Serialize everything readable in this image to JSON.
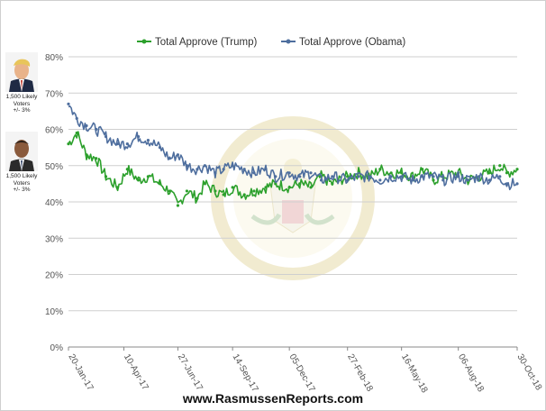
{
  "chart_data": {
    "type": "line",
    "title": "",
    "xlabel": "",
    "ylabel": "",
    "ylim": [
      0,
      80
    ],
    "y_ticks": [
      "0%",
      "10%",
      "20%",
      "30%",
      "40%",
      "50%",
      "60%",
      "70%",
      "80%"
    ],
    "x_ticks": [
      "20-Jan-17",
      "10-Apr-17",
      "27-Jun-17",
      "14-Sep-17",
      "05-Dec-17",
      "27-Feb-18",
      "16-May-18",
      "06-Aug-18",
      "30-Oct-18"
    ],
    "grid": "horizontal",
    "legend_position": "top",
    "series": [
      {
        "name": "Total Approve (Trump)",
        "color": "#2ca02c",
        "x": [
          "20-Jan-17",
          "01-Feb-17",
          "15-Feb-17",
          "01-Mar-17",
          "15-Mar-17",
          "01-Apr-17",
          "15-Apr-17",
          "01-May-17",
          "15-May-17",
          "01-Jun-17",
          "15-Jun-17",
          "27-Jun-17",
          "10-Jul-17",
          "25-Jul-17",
          "05-Aug-17",
          "20-Aug-17",
          "01-Sep-17",
          "14-Sep-17",
          "01-Oct-17",
          "15-Oct-17",
          "01-Nov-17",
          "15-Nov-17",
          "05-Dec-17",
          "20-Dec-17",
          "05-Jan-18",
          "20-Jan-18",
          "05-Feb-18",
          "27-Feb-18",
          "15-Mar-18",
          "01-Apr-18",
          "15-Apr-18",
          "01-May-18",
          "16-May-18",
          "01-Jun-18",
          "15-Jun-18",
          "01-Jul-18",
          "15-Jul-18",
          "06-Aug-18",
          "20-Aug-18",
          "05-Sep-18",
          "20-Sep-18",
          "05-Oct-18",
          "15-Oct-18",
          "30-Oct-18"
        ],
        "values": [
          56,
          59,
          53,
          52,
          47,
          44,
          49,
          46,
          47,
          45,
          43,
          39,
          43,
          41,
          45,
          43,
          42,
          44,
          42,
          43,
          44,
          45,
          44,
          45,
          44,
          47,
          45,
          47,
          48,
          47,
          49,
          48,
          48,
          47,
          49,
          46,
          47,
          48,
          46,
          47,
          48,
          50,
          48,
          49
        ]
      },
      {
        "name": "Total Approve (Obama)",
        "color": "#4e6e9e",
        "x": [
          "20-Jan-17",
          "01-Feb-17",
          "15-Feb-17",
          "01-Mar-17",
          "15-Mar-17",
          "01-Apr-17",
          "15-Apr-17",
          "01-May-17",
          "15-May-17",
          "01-Jun-17",
          "15-Jun-17",
          "27-Jun-17",
          "10-Jul-17",
          "25-Jul-17",
          "05-Aug-17",
          "20-Aug-17",
          "01-Sep-17",
          "14-Sep-17",
          "01-Oct-17",
          "15-Oct-17",
          "01-Nov-17",
          "15-Nov-17",
          "05-Dec-17",
          "20-Dec-17",
          "05-Jan-18",
          "20-Jan-18",
          "05-Feb-18",
          "27-Feb-18",
          "15-Mar-18",
          "01-Apr-18",
          "15-Apr-18",
          "01-May-18",
          "16-May-18",
          "01-Jun-18",
          "15-Jun-18",
          "01-Jul-18",
          "15-Jul-18",
          "06-Aug-18",
          "20-Aug-18",
          "05-Sep-18",
          "20-Sep-18",
          "05-Oct-18",
          "15-Oct-18",
          "30-Oct-18"
        ],
        "values": [
          67,
          63,
          61,
          60,
          58,
          56,
          56,
          58,
          57,
          55,
          52,
          53,
          50,
          49,
          50,
          48,
          49,
          50,
          49,
          48,
          49,
          47,
          48,
          47,
          48,
          46,
          47,
          46,
          47,
          47,
          46,
          47,
          47,
          46,
          47,
          47,
          46,
          47,
          46,
          47,
          46,
          47,
          45,
          45
        ]
      }
    ],
    "side_cards": [
      {
        "name": "trump",
        "lines": [
          "1,500 Likely",
          "Voters",
          "+/- 3%"
        ]
      },
      {
        "name": "obama",
        "lines": [
          "1,500 Likely",
          "Voters",
          "+/- 3%"
        ]
      }
    ],
    "watermark_text": "SEAL OF THE PRESIDENT OF THE UNITED STATES",
    "footer": "www.RasmussenReports.com"
  }
}
